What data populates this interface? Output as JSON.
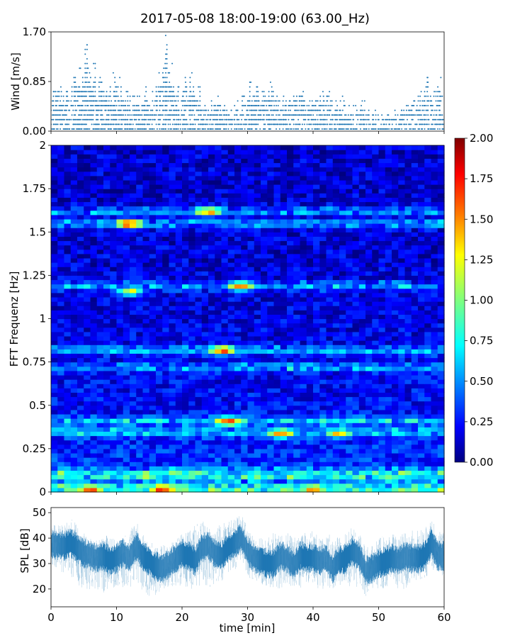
{
  "title": "2017-05-08 18:00-19:00 (63.00_Hz)",
  "colors": {
    "series": "#1f77b4",
    "colormap": [
      "#00007f",
      "#0000ff",
      "#007fff",
      "#00ffff",
      "#7fff7f",
      "#ffff00",
      "#ff7f00",
      "#ff0000",
      "#7f0000"
    ]
  },
  "chart_data": [
    {
      "type": "scatter",
      "panel": "wind",
      "ylabel": "Wind [m/s]",
      "xlabel": "",
      "xlim": [
        0,
        60
      ],
      "ylim": [
        0,
        1.7
      ],
      "yticks": [
        "0.00",
        "0.85",
        "1.70"
      ],
      "y_quantization": 0.085,
      "summary_max_per_minute": [
        0.68,
        0.77,
        0.68,
        0.94,
        1.11,
        1.53,
        1.19,
        0.94,
        0.68,
        1.02,
        0.94,
        0.68,
        0.6,
        0.6,
        0.77,
        0.68,
        1.02,
        1.7,
        1.19,
        0.77,
        0.94,
        1.02,
        0.77,
        0.43,
        0.51,
        0.6,
        0.43,
        0.34,
        0.51,
        0.6,
        0.85,
        0.77,
        0.68,
        0.85,
        0.6,
        0.6,
        0.51,
        0.6,
        0.68,
        0.51,
        0.51,
        0.68,
        0.68,
        0.51,
        0.6,
        0.43,
        0.43,
        0.51,
        0.34,
        0.34,
        0.26,
        0.26,
        0.34,
        0.34,
        0.43,
        0.51,
        0.68,
        0.94,
        0.68,
        0.94
      ]
    },
    {
      "type": "heatmap",
      "panel": "spectrogram",
      "ylabel": "FFT Frequenz [Hz]",
      "xlim": [
        0,
        60
      ],
      "ylim": [
        0,
        2
      ],
      "yticks": [
        "0",
        "0.25",
        "0.5",
        "0.75",
        "1",
        "1.25",
        "1.5",
        "1.75",
        "2"
      ],
      "colorbar": {
        "range": [
          0,
          2
        ],
        "ticks": [
          "0.00",
          "0.25",
          "0.50",
          "0.75",
          "1.00",
          "1.25",
          "1.50",
          "1.75",
          "2.00"
        ]
      },
      "bright_bands_hz": [
        0.02,
        0.1,
        0.35,
        0.41,
        0.72,
        0.82,
        1.19,
        1.55,
        1.62
      ],
      "hot_spots": [
        {
          "t": 12,
          "f": 1.55,
          "value": 1.9
        },
        {
          "t": 24,
          "f": 1.62,
          "value": 1.7
        },
        {
          "t": 27,
          "f": 0.41,
          "value": 1.9
        },
        {
          "t": 26,
          "f": 0.82,
          "value": 1.8
        },
        {
          "t": 29,
          "f": 1.19,
          "value": 1.6
        },
        {
          "t": 12,
          "f": 1.16,
          "value": 1.3
        },
        {
          "t": 35,
          "f": 0.34,
          "value": 1.8
        },
        {
          "t": 44,
          "f": 0.34,
          "value": 1.5
        },
        {
          "t": 17,
          "f": 0.02,
          "value": 2.0
        },
        {
          "t": 6,
          "f": 0.02,
          "value": 1.8
        },
        {
          "t": 40,
          "f": 0.02,
          "value": 1.7
        }
      ]
    },
    {
      "type": "area",
      "panel": "spl",
      "ylabel": "SPL [dB]",
      "xlabel": "time [min]",
      "xlim": [
        0,
        60
      ],
      "ylim": [
        13,
        52
      ],
      "yticks": [
        "20",
        "30",
        "40",
        "50"
      ],
      "xticks": [
        "0",
        "10",
        "20",
        "30",
        "40",
        "50",
        "60"
      ],
      "series": [
        {
          "values_mean_per_minute": [
            38,
            37,
            37,
            38,
            36,
            34,
            33,
            32,
            33,
            31,
            32,
            34,
            32,
            37,
            33,
            31,
            29,
            28,
            30,
            32,
            34,
            33,
            31,
            36,
            37,
            34,
            33,
            36,
            38,
            40,
            35,
            32,
            31,
            30,
            30,
            33,
            32,
            29,
            33,
            32,
            32,
            31,
            32,
            28,
            31,
            32,
            35,
            33,
            27,
            28,
            30,
            31,
            32,
            31,
            33,
            32,
            32,
            33,
            38,
            33
          ]
        },
        {
          "values_min_per_minute": [
            30,
            27,
            26,
            24,
            22,
            19,
            20,
            20,
            18,
            20,
            21,
            20,
            20,
            24,
            18,
            16,
            17,
            20,
            20,
            21,
            21,
            20,
            20,
            21,
            20,
            22,
            21,
            26,
            27,
            31,
            25,
            23,
            22,
            21,
            20,
            20,
            22,
            20,
            20,
            22,
            21,
            20,
            20,
            19,
            20,
            20,
            22,
            20,
            17,
            20,
            20,
            20,
            22,
            20,
            20,
            22,
            24,
            23,
            28,
            24
          ]
        },
        {
          "values_max_per_minute": [
            47,
            46,
            45,
            48,
            46,
            42,
            40,
            39,
            43,
            40,
            40,
            40,
            43,
            47,
            42,
            37,
            40,
            38,
            38,
            39,
            42,
            43,
            45,
            48,
            46,
            44,
            46,
            47,
            48,
            50,
            44,
            40,
            40,
            41,
            42,
            42,
            43,
            40,
            42,
            42,
            43,
            40,
            42,
            41,
            40,
            42,
            45,
            43,
            37,
            37,
            40,
            42,
            42,
            40,
            43,
            43,
            43,
            44,
            47,
            44
          ]
        }
      ]
    }
  ]
}
